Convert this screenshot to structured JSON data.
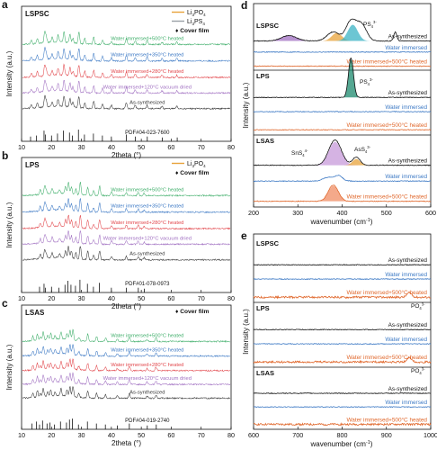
{
  "figure": {
    "panels": [
      {
        "id": "a",
        "letter": "a",
        "sample": "LSPSC",
        "legend": [
          {
            "label": "Li3PO4",
            "base": "Li",
            "sub1": "3",
            "mid": "PO",
            "sub2": "4",
            "color": "#e8a33a"
          },
          {
            "label": "Li3PS4",
            "base": "Li",
            "sub1": "3",
            "mid": "PS",
            "sub2": "4",
            "color": "#9aa0a6"
          },
          {
            "marker": "♦",
            "label": "Cover film"
          }
        ],
        "xlabel": "2theta (°)",
        "ylabel": "Intensity (a.u.)",
        "xticks": [
          "10",
          "20",
          "30",
          "40",
          "50",
          "60",
          "70",
          "80"
        ],
        "traces": [
          {
            "label": "Water immersed+500°C heated",
            "color": "#3fae6a"
          },
          {
            "label": "Water immersed+350°C heated",
            "color": "#3b78c4"
          },
          {
            "label": "Water immersed+280°C heated",
            "color": "#e2474c"
          },
          {
            "label": "Water immersed+120°C vacuum dried",
            "color": "#a06fc1"
          },
          {
            "label": "As-synthesized",
            "color": "#333333"
          }
        ],
        "reference": "PDF#04-023-7600"
      },
      {
        "id": "b",
        "letter": "b",
        "sample": "LPS",
        "legend": [
          {
            "label": "Li3PO4",
            "base": "Li",
            "sub1": "3",
            "mid": "PO",
            "sub2": "4",
            "color": "#e8a33a"
          },
          {
            "marker": "♦",
            "label": "Cover film"
          }
        ],
        "xlabel": "2theta (°)",
        "ylabel": "Intensity (a.u.)",
        "xticks": [
          "10",
          "20",
          "30",
          "40",
          "50",
          "60",
          "70",
          "80"
        ],
        "traces": [
          {
            "label": "Water immersed+500°C heated",
            "color": "#3fae6a"
          },
          {
            "label": "Water immersed+350°C heated",
            "color": "#3b78c4"
          },
          {
            "label": "Water immersed+280°C heated",
            "color": "#e2474c"
          },
          {
            "label": "Water immersed+120°C vacuum dried",
            "color": "#a06fc1"
          },
          {
            "label": "As-synthesized",
            "color": "#333333"
          }
        ],
        "reference": "PDF#01-078-0973"
      },
      {
        "id": "c",
        "letter": "c",
        "sample": "LSAS",
        "legend": [
          {
            "marker": "♦",
            "label": "Cover film"
          }
        ],
        "xlabel": "2theta (°)",
        "ylabel": "Intensity (a.u.)",
        "xticks": [
          "10",
          "20",
          "30",
          "40",
          "50",
          "60",
          "70",
          "80"
        ],
        "traces": [
          {
            "label": "Water immersed+500°C heated",
            "color": "#3fae6a"
          },
          {
            "label": "Water immersed+350°C heated",
            "color": "#3b78c4"
          },
          {
            "label": "Water immersed+280°C heated",
            "color": "#e2474c"
          },
          {
            "label": "Water immersed+120°C vacuum dried",
            "color": "#a06fc1"
          },
          {
            "label": "As-synthesized",
            "color": "#333333"
          }
        ],
        "reference": "PDF#04-019-2740"
      },
      {
        "id": "d",
        "letter": "d",
        "xlabel": "wavenumber (cm-1)",
        "xlabel_main": "wavenumber (cm",
        "xlabel_sup": "-1",
        "xlabel_end": ")",
        "ylabel": "Intensity (a.u.)",
        "xticks": [
          "200",
          "300",
          "400",
          "500",
          "600"
        ],
        "groups": [
          {
            "sample": "LSPSC",
            "traces": [
              {
                "label": "As-synthesized",
                "color": "#111111"
              },
              {
                "label": "Water immersed",
                "color": "#3b78c4"
              },
              {
                "label": "Water immersed+500°C heated",
                "color": "#e0672b"
              }
            ],
            "peak_label": {
              "base": "PS",
              "sub": "4",
              "sup": "3-"
            }
          },
          {
            "sample": "LPS",
            "traces": [
              {
                "label": "As-synthesized",
                "color": "#111111"
              },
              {
                "label": "Water immersed",
                "color": "#3b78c4"
              },
              {
                "label": "Water immersed+500°C heated",
                "color": "#e0672b"
              }
            ],
            "peak_label": {
              "base": "PS",
              "sub": "4",
              "sup": "3-"
            }
          },
          {
            "sample": "LSAS",
            "traces": [
              {
                "label": "As-synthesized",
                "color": "#111111"
              },
              {
                "label": "Water immersed",
                "color": "#3b78c4"
              },
              {
                "label": "Water immersed+500°C heated",
                "color": "#e0672b"
              }
            ],
            "peak_labels": [
              {
                "base": "SnS",
                "sub": "4",
                "sup": "4-"
              },
              {
                "base": "AsS",
                "sub": "4",
                "sup": "3-"
              }
            ]
          }
        ]
      },
      {
        "id": "e",
        "letter": "e",
        "xlabel": "wavenumber (cm-1)",
        "xlabel_main": "wavenumber (cm",
        "xlabel_sup": "-1",
        "xlabel_end": ")",
        "ylabel": "Intensity (a.u.)",
        "xticks": [
          "600",
          "700",
          "800",
          "900",
          "1000"
        ],
        "groups": [
          {
            "sample": "LSPSC",
            "traces": [
              {
                "label": "As-synthesized",
                "color": "#111111"
              },
              {
                "label": "Water immersed",
                "color": "#3b78c4"
              },
              {
                "label": "Water immersed+500°C heated",
                "color": "#e0672b"
              }
            ],
            "peak_label": {
              "base": "PO",
              "sub": "4",
              "sup": "3-"
            }
          },
          {
            "sample": "LPS",
            "traces": [
              {
                "label": "As-synthesized",
                "color": "#111111"
              },
              {
                "label": "Water immersed",
                "color": "#3b78c4"
              },
              {
                "label": "Water immersed+500°C heated",
                "color": "#e0672b"
              }
            ],
            "peak_label": {
              "base": "PO",
              "sub": "4",
              "sup": "3-"
            }
          },
          {
            "sample": "LSAS",
            "traces": [
              {
                "label": "As-synthesized",
                "color": "#111111"
              },
              {
                "label": "Water immersed",
                "color": "#3b78c4"
              },
              {
                "label": "Water immersed+500°C heated",
                "color": "#e0672b"
              }
            ]
          }
        ]
      }
    ]
  }
}
